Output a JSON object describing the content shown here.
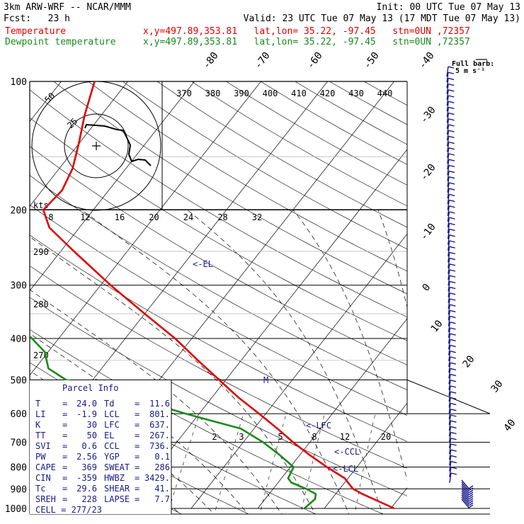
{
  "header": {
    "model": "3km ARW-WRF -- NCAR/MMM",
    "init": "Init: 00 UTC Tue 07 May 13",
    "fcst": "Fcst:   23 h",
    "valid": "Valid: 23 UTC Tue 07 May 13 (17 MDT Tue 07 May 13)",
    "temp_label": "Temperature",
    "dew_label": "Dewpoint temperature",
    "location": "x,y=497.89,353.81   lat,lon= 35.22, -97.45   stn=0UN ,72357",
    "colors": {
      "temperature": "#e00000",
      "dewpoint": "#1a8a1a",
      "text_blue": "#1a1a8c"
    }
  },
  "chart_data": {
    "type": "skew-t log-p",
    "pressure_levels": [
      100,
      200,
      300,
      400,
      500,
      600,
      700,
      800,
      900,
      1000
    ],
    "pressure_labels": [
      "100",
      "200",
      "300",
      "400",
      "500",
      "600",
      "700",
      "800",
      "900",
      "1000"
    ],
    "isotherm_labels": [
      "-80",
      "-70",
      "-60",
      "-50",
      "-40",
      "-30",
      "-20",
      "-10",
      "0",
      "10",
      "20",
      "30",
      "40"
    ],
    "theta_labels": [
      "370",
      "380",
      "390",
      "400",
      "410",
      "420",
      "430",
      "440"
    ],
    "theta_left_labels": [
      "290",
      "280",
      "270"
    ],
    "mixing_ratio_labels": [
      "2",
      "3",
      "5",
      "8",
      "12",
      "20"
    ],
    "wind_speed_labels": [
      "8",
      "12",
      "16",
      "20",
      "24",
      "28",
      "32"
    ],
    "wind_units": "kts",
    "hodograph_ring_labels": [
      "50",
      "25"
    ],
    "barb_key": {
      "line1": "Full barb:",
      "line2": "5 m s⁻¹"
    },
    "annotations": [
      "<-EL",
      "M",
      "<-LFC",
      "<-CCL",
      "<-LCL"
    ],
    "temperature_profile": [
      {
        "p": 1000,
        "t": 30.5
      },
      {
        "p": 925,
        "t": 24.0
      },
      {
        "p": 900,
        "t": 22.0
      },
      {
        "p": 850,
        "t": 19.5
      },
      {
        "p": 800,
        "t": 15.5
      },
      {
        "p": 750,
        "t": 11.5
      },
      {
        "p": 700,
        "t": 7.5
      },
      {
        "p": 650,
        "t": 3.5
      },
      {
        "p": 600,
        "t": -1.0
      },
      {
        "p": 550,
        "t": -6.0
      },
      {
        "p": 500,
        "t": -11.0
      },
      {
        "p": 450,
        "t": -16.5
      },
      {
        "p": 400,
        "t": -22.5
      },
      {
        "p": 350,
        "t": -30.0
      },
      {
        "p": 300,
        "t": -38.5
      },
      {
        "p": 250,
        "t": -48.0
      },
      {
        "p": 220,
        "t": -54.5
      },
      {
        "p": 200,
        "t": -57.5
      },
      {
        "p": 180,
        "t": -57.0
      },
      {
        "p": 160,
        "t": -58.0
      },
      {
        "p": 140,
        "t": -60.0
      },
      {
        "p": 120,
        "t": -62.5
      },
      {
        "p": 100,
        "t": -65.0
      }
    ],
    "dewpoint_profile": [
      {
        "p": 1000,
        "t": 17.0
      },
      {
        "p": 950,
        "t": 17.5
      },
      {
        "p": 925,
        "t": 17.0
      },
      {
        "p": 900,
        "t": 15.0
      },
      {
        "p": 870,
        "t": 12.0
      },
      {
        "p": 850,
        "t": 11.0
      },
      {
        "p": 800,
        "t": 10.5
      },
      {
        "p": 750,
        "t": 7.0
      },
      {
        "p": 700,
        "t": 3.0
      },
      {
        "p": 650,
        "t": -2.0
      },
      {
        "p": 620,
        "t": -8.0
      },
      {
        "p": 600,
        "t": -12.0
      },
      {
        "p": 560,
        "t": -20.0
      },
      {
        "p": 500,
        "t": -34.0
      },
      {
        "p": 470,
        "t": -38.0
      },
      {
        "p": 430,
        "t": -40.5
      },
      {
        "p": 400,
        "t": -44.0
      },
      {
        "p": 350,
        "t": -51.0
      },
      {
        "p": 300,
        "t": -59.5
      },
      {
        "p": 250,
        "t": -68.0
      },
      {
        "p": 200,
        "t": -74.0
      },
      {
        "p": 170,
        "t": -77.5
      },
      {
        "p": 150,
        "t": -79.5
      },
      {
        "p": 130,
        "t": -80.0
      },
      {
        "p": 115,
        "t": -83.0
      },
      {
        "p": 100,
        "t": -86.0
      }
    ]
  },
  "parcel_info": {
    "title": "Parcel Info",
    "rows": [
      {
        "l1": "T",
        "v1": "24.0",
        "l2": "Td",
        "v2": "11.6"
      },
      {
        "l1": "LI",
        "v1": "-1.9",
        "l2": "LCL",
        "v2": "801."
      },
      {
        "l1": "K",
        "v1": "30",
        "l2": "LFC",
        "v2": "637."
      },
      {
        "l1": "TT",
        "v1": "50",
        "l2": "EL",
        "v2": "267."
      },
      {
        "l1": "SVI",
        "v1": "0.6",
        "l2": "CCL",
        "v2": "736."
      },
      {
        "l1": "PW",
        "v1": "2.56",
        "l2": "YGP",
        "v2": "0.1"
      },
      {
        "l1": "CAPE",
        "v1": "369",
        "l2": "SWEAT",
        "v2": "286"
      },
      {
        "l1": "CIN",
        "v1": "-359",
        "l2": "HWBZ",
        "v2": "3429."
      },
      {
        "l1": "Tc",
        "v1": "29.6",
        "l2": "SHEAR",
        "v2": "41."
      },
      {
        "l1": "SREH",
        "v1": "228",
        "l2": "LAPSE",
        "v2": "7.7"
      }
    ],
    "cell": "CELL = 277/23"
  }
}
